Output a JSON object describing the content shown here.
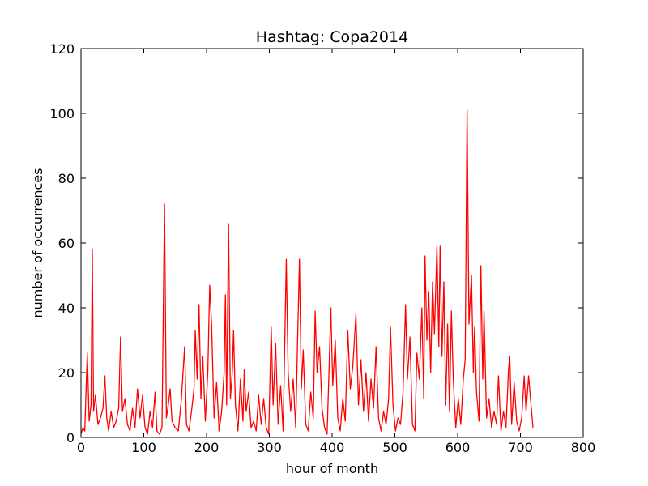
{
  "chart_data": {
    "type": "line",
    "title": "Hashtag: Copa2014",
    "x_label": "hour of month",
    "y_label": "number of occurrences",
    "x": [
      0,
      3,
      6,
      10,
      13,
      16,
      18,
      20,
      23,
      27,
      31,
      35,
      38,
      41,
      44,
      48,
      52,
      56,
      60,
      63,
      66,
      70,
      74,
      78,
      82,
      86,
      90,
      94,
      98,
      102,
      106,
      110,
      114,
      118,
      121,
      125,
      129,
      133,
      136,
      139,
      142,
      145,
      150,
      155,
      160,
      165,
      168,
      172,
      176,
      180,
      182,
      185,
      188,
      191,
      194,
      198,
      202,
      205,
      208,
      212,
      216,
      220,
      224,
      228,
      230,
      232,
      235,
      238,
      241,
      243,
      246,
      250,
      254,
      258,
      260,
      263,
      267,
      271,
      275,
      279,
      283,
      287,
      291,
      295,
      299,
      303,
      306,
      310,
      314,
      318,
      322,
      327,
      330,
      334,
      338,
      342,
      345,
      348,
      351,
      354,
      358,
      362,
      366,
      370,
      373,
      376,
      380,
      384,
      388,
      392,
      395,
      398,
      401,
      405,
      409,
      413,
      417,
      421,
      425,
      429,
      433,
      438,
      442,
      446,
      450,
      454,
      458,
      462,
      466,
      470,
      474,
      478,
      482,
      486,
      490,
      493,
      497,
      501,
      505,
      509,
      513,
      517,
      520,
      524,
      528,
      532,
      535,
      539,
      543,
      546,
      548,
      551,
      554,
      557,
      560,
      563,
      567,
      570,
      572,
      575,
      578,
      581,
      584,
      587,
      590,
      593,
      597,
      601,
      605,
      609,
      612,
      615,
      618,
      622,
      625,
      627,
      630,
      634,
      637,
      640,
      642,
      646,
      650,
      654,
      658,
      662,
      665,
      669,
      673,
      677,
      681,
      683,
      686,
      690,
      694,
      698,
      702,
      706,
      709,
      713,
      716,
      720
    ],
    "series": [
      {
        "name": "Copa2014",
        "color": "#ff0000",
        "values": [
          1,
          3,
          2,
          26,
          5,
          10,
          58,
          8,
          13,
          4,
          6,
          9,
          19,
          6,
          2,
          8,
          3,
          5,
          9,
          31,
          8,
          12,
          4,
          2,
          9,
          3,
          15,
          6,
          13,
          3,
          1,
          8,
          3,
          14,
          2,
          1,
          3,
          72,
          6,
          10,
          15,
          5,
          3,
          2,
          12,
          28,
          4,
          2,
          8,
          15,
          33,
          18,
          41,
          12,
          25,
          5,
          20,
          47,
          35,
          6,
          17,
          2,
          8,
          20,
          44,
          10,
          66,
          12,
          20,
          33,
          10,
          2,
          18,
          5,
          21,
          8,
          14,
          3,
          5,
          2,
          13,
          4,
          12,
          3,
          1,
          34,
          10,
          29,
          4,
          16,
          2,
          55,
          20,
          8,
          18,
          3,
          30,
          55,
          15,
          27,
          4,
          2,
          14,
          6,
          39,
          20,
          28,
          9,
          3,
          1,
          20,
          40,
          16,
          30,
          6,
          2,
          12,
          5,
          33,
          15,
          22,
          38,
          10,
          24,
          8,
          20,
          5,
          18,
          9,
          28,
          6,
          2,
          8,
          4,
          12,
          34,
          10,
          2,
          6,
          4,
          14,
          41,
          18,
          31,
          4,
          2,
          26,
          18,
          40,
          12,
          56,
          30,
          45,
          20,
          48,
          32,
          59,
          28,
          59,
          25,
          48,
          10,
          35,
          8,
          39,
          18,
          3,
          12,
          4,
          18,
          24,
          101,
          35,
          50,
          20,
          34,
          14,
          5,
          53,
          18,
          39,
          6,
          12,
          3,
          8,
          4,
          19,
          2,
          8,
          3,
          21,
          25,
          4,
          17,
          5,
          2,
          6,
          19,
          8,
          19,
          12,
          3
        ]
      }
    ],
    "xlim": [
      0,
      800
    ],
    "xticks": [
      0,
      100,
      200,
      300,
      400,
      500,
      600,
      700,
      800
    ],
    "ylim": [
      0,
      120
    ],
    "yticks": [
      0,
      20,
      40,
      60,
      80,
      100,
      120
    ],
    "grid": false
  }
}
